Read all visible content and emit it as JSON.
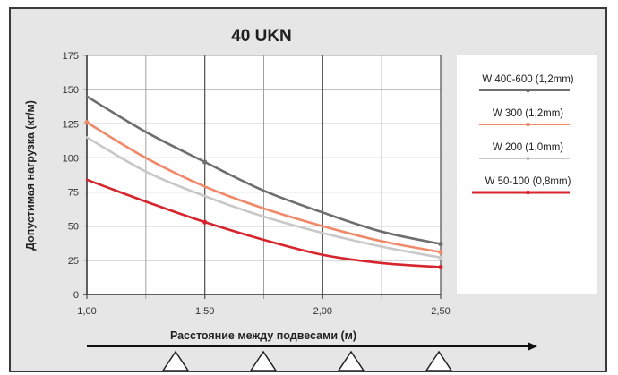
{
  "chart_data": {
    "type": "line",
    "title": "40 UKN",
    "xlabel": "Расстояние между подвесами (м)",
    "ylabel": "Допустимая нагрузка (кг/м)",
    "x_tick_labels": [
      "1,00",
      "1,50",
      "2,00",
      "2,50"
    ],
    "y_tick_labels": [
      "0",
      "25",
      "50",
      "75",
      "100",
      "125",
      "150",
      "175"
    ],
    "xlim": [
      1.0,
      2.5
    ],
    "ylim": [
      0,
      175
    ],
    "grid": true,
    "legend_position": "right",
    "series": [
      {
        "name": "W 400-600 (1,2mm)",
        "color": "#6e6e6e",
        "x": [
          1.0,
          1.25,
          1.5,
          1.75,
          2.0,
          2.25,
          2.5
        ],
        "values": [
          145,
          119,
          97,
          76,
          60,
          46,
          37
        ],
        "marker_x": 1.5
      },
      {
        "name": "W 300 (1,2mm)",
        "color": "#f0896a",
        "x": [
          1.0,
          1.25,
          1.5,
          1.75,
          2.0,
          2.25,
          2.5
        ],
        "values": [
          126,
          100,
          79,
          63,
          50,
          39,
          31
        ],
        "marker_x": 1.0
      },
      {
        "name": "W 200 (1,0mm)",
        "color": "#c8c8c8",
        "x": [
          1.0,
          1.25,
          1.5,
          1.75,
          2.0,
          2.25,
          2.5
        ],
        "values": [
          115,
          90,
          72,
          57,
          45,
          35,
          27
        ],
        "marker_x": null
      },
      {
        "name": "W 50-100 (0,8mm)",
        "color": "#d6252d",
        "x": [
          1.0,
          1.25,
          1.5,
          1.75,
          2.0,
          2.25,
          2.5
        ],
        "values": [
          84,
          68,
          53,
          40,
          29,
          23,
          20
        ],
        "marker_x": 1.5
      }
    ]
  },
  "triangle_count": 4
}
